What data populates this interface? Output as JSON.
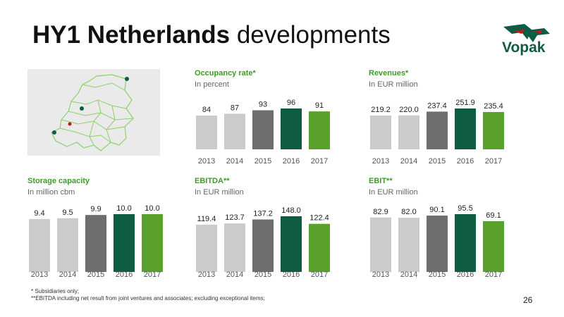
{
  "slide": {
    "title_bold": "HY1 Netherlands",
    "title_rest": "developments",
    "page_number": "26",
    "footnotes": [
      "* Subsidiaries only;",
      "**EBITDA including net result from joint ventures and associates; excluding exceptional items;"
    ],
    "logo_text": "Vopak"
  },
  "colors": {
    "light_gray": "#cbcbcb",
    "dark_gray": "#6e6e6e",
    "dark_green": "#0d5c43",
    "light_green": "#5aa02c",
    "title_green": "#3f9a2a"
  },
  "chart_data": [
    {
      "type": "bar",
      "title": "Occupancy rate*",
      "subtitle": "In percent",
      "categories": [
        "2013",
        "2014",
        "2015",
        "2016",
        "2017"
      ],
      "values": [
        84,
        87,
        93,
        96,
        91
      ],
      "labels": [
        "84",
        "87",
        "93",
        "96",
        "91"
      ]
    },
    {
      "type": "bar",
      "title": "Revenues*",
      "subtitle": "In EUR million",
      "categories": [
        "2013",
        "2014",
        "2015",
        "2016",
        "2017"
      ],
      "values": [
        219.2,
        220.0,
        237.4,
        251.9,
        235.4
      ],
      "labels": [
        "219.2",
        "220.0",
        "237.4",
        "251.9",
        "235.4"
      ]
    },
    {
      "type": "bar",
      "title": "Storage capacity",
      "subtitle": "In million cbm",
      "categories": [
        "2013",
        "2014",
        "2015",
        "2016",
        "2017"
      ],
      "values": [
        9.4,
        9.5,
        9.9,
        10.0,
        10.0
      ],
      "labels": [
        "9.4",
        "9.5",
        "9.9",
        "10.0",
        "10.0"
      ]
    },
    {
      "type": "bar",
      "title": "EBITDA**",
      "subtitle": "In EUR million",
      "categories": [
        "2013",
        "2014",
        "2015",
        "2016",
        "2017"
      ],
      "values": [
        119.4,
        123.7,
        137.2,
        148.0,
        122.4
      ],
      "labels": [
        "119.4",
        "123.7",
        "137.2",
        "148.0",
        "122.4"
      ]
    },
    {
      "type": "bar",
      "title": "EBIT**",
      "subtitle": "In EUR million",
      "categories": [
        "2013",
        "2014",
        "2015",
        "2016",
        "2017"
      ],
      "values": [
        82.9,
        82.0,
        90.1,
        95.5,
        69.1
      ],
      "labels": [
        "82.9",
        "82.0",
        "90.1",
        "95.5",
        "69.1"
      ]
    }
  ]
}
